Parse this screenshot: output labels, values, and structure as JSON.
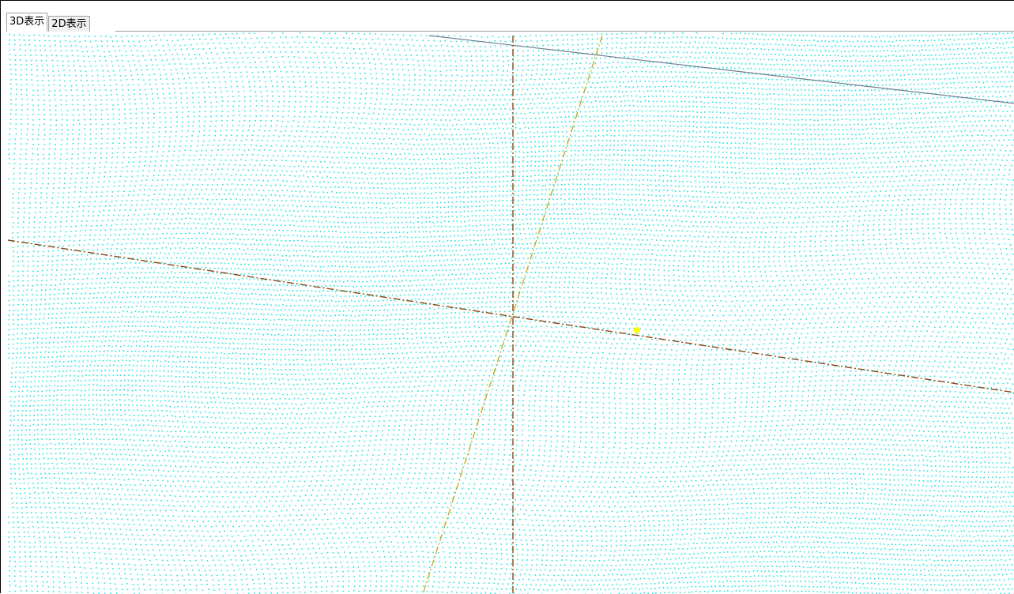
{
  "tabs": [
    {
      "label": "3D表示",
      "active": true
    },
    {
      "label": "2D表示",
      "active": false
    }
  ],
  "viewport": {
    "background": "#ffffff",
    "point_color": "#19e8e0",
    "highlight_color": "#ffff00",
    "axis_line_color": "#8b4513",
    "ortho_line_color": "#c8a000",
    "boundary_line_color": "#708090"
  }
}
